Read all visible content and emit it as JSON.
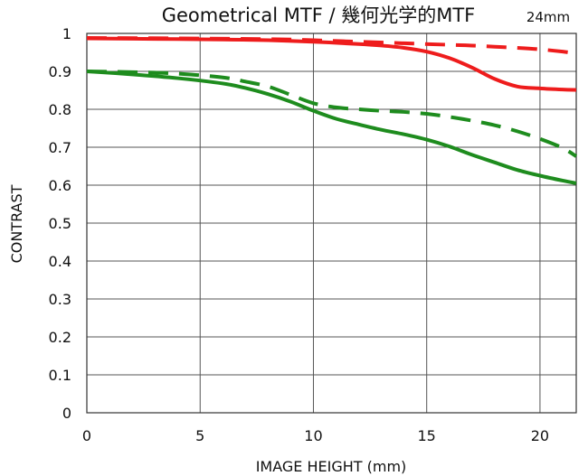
{
  "chart_data": {
    "type": "line",
    "title": "Geometrical MTF / 幾何光学的MTF",
    "subtitle": "24mm",
    "xlabel": "IMAGE HEIGHT (mm)",
    "ylabel": "CONTRAST",
    "xlim": [
      0,
      21.6
    ],
    "ylim": [
      0,
      1
    ],
    "xticks": [
      "0",
      "5",
      "10",
      "15",
      "20"
    ],
    "yticks": [
      "0",
      "0.1",
      "0.2",
      "0.3",
      "0.4",
      "0.5",
      "0.6",
      "0.7",
      "0.8",
      "0.9",
      "1"
    ],
    "grid": true,
    "series": [
      {
        "color": "#ee1c1c",
        "dash": "solid",
        "x": [
          0,
          2,
          4,
          6,
          8,
          10,
          12,
          13,
          14,
          15,
          16,
          17,
          18,
          19,
          20,
          21,
          21.6
        ],
        "y": [
          0.987,
          0.986,
          0.985,
          0.984,
          0.982,
          0.978,
          0.972,
          0.968,
          0.962,
          0.952,
          0.935,
          0.91,
          0.88,
          0.86,
          0.855,
          0.852,
          0.851
        ]
      },
      {
        "color": "#ee1c1c",
        "dash": "dashed",
        "x": [
          0,
          4,
          8,
          10,
          12,
          14,
          16,
          17,
          18,
          19,
          20,
          21,
          21.6
        ],
        "y": [
          0.988,
          0.987,
          0.985,
          0.982,
          0.978,
          0.974,
          0.97,
          0.968,
          0.965,
          0.962,
          0.958,
          0.952,
          0.947
        ]
      },
      {
        "color": "#1e8c1e",
        "dash": "solid",
        "x": [
          0,
          2,
          4,
          6,
          7,
          8,
          9,
          10,
          11,
          12,
          13,
          14,
          15,
          16,
          17,
          18,
          19,
          20,
          21,
          21.6
        ],
        "y": [
          0.9,
          0.892,
          0.882,
          0.868,
          0.856,
          0.84,
          0.82,
          0.796,
          0.775,
          0.76,
          0.746,
          0.734,
          0.72,
          0.702,
          0.68,
          0.66,
          0.64,
          0.625,
          0.612,
          0.605
        ]
      },
      {
        "color": "#1e8c1e",
        "dash": "dashed",
        "x": [
          0,
          2,
          4,
          6,
          7,
          8,
          9,
          10,
          11,
          12,
          13,
          14,
          15,
          16,
          17,
          18,
          19,
          20,
          21,
          21.6
        ],
        "y": [
          0.9,
          0.898,
          0.894,
          0.884,
          0.873,
          0.86,
          0.838,
          0.816,
          0.805,
          0.8,
          0.796,
          0.793,
          0.788,
          0.78,
          0.77,
          0.758,
          0.742,
          0.722,
          0.698,
          0.676
        ]
      }
    ]
  }
}
